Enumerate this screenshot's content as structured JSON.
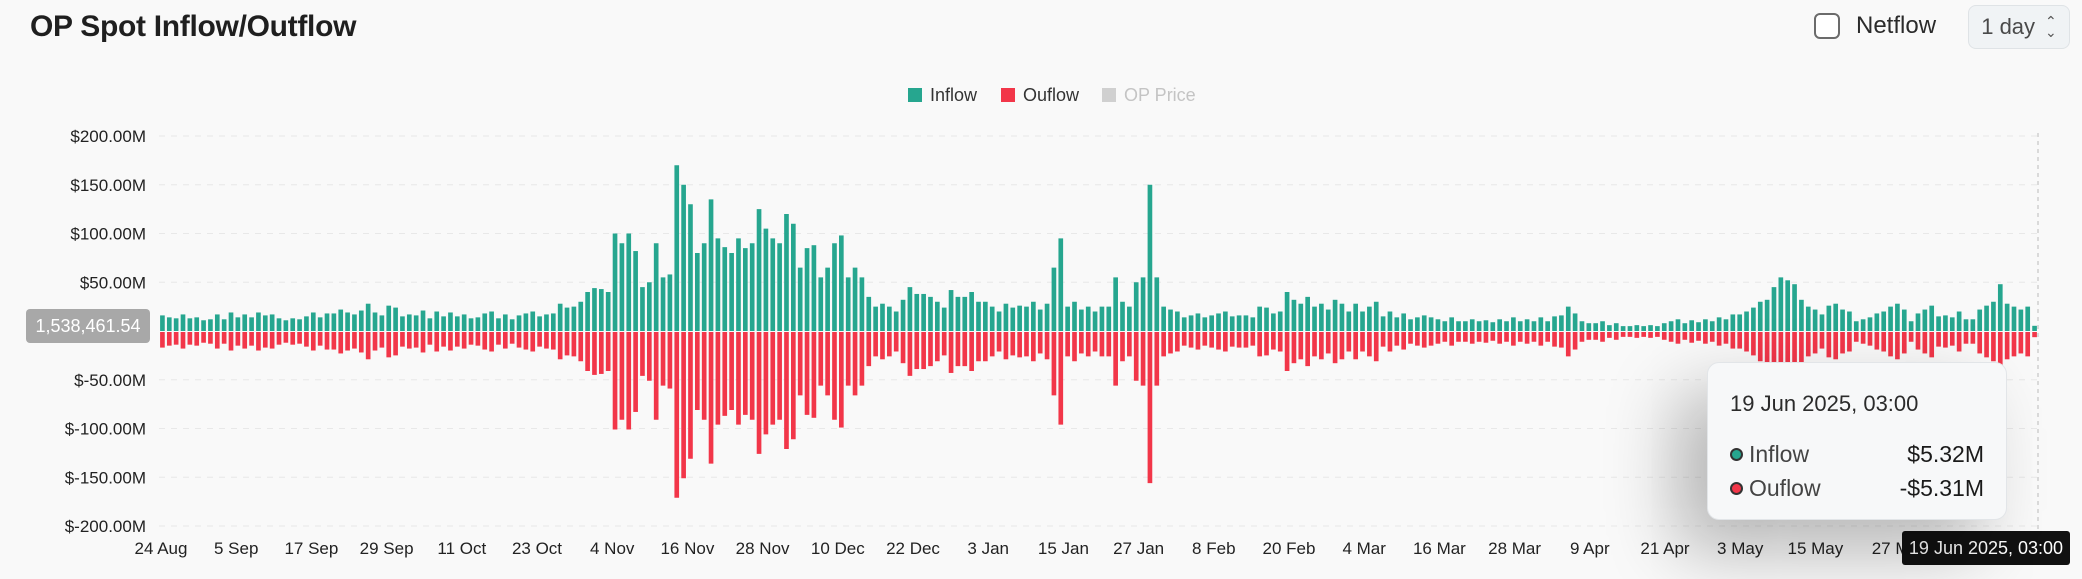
{
  "header": {
    "title": "OP Spot Inflow/Outflow",
    "netflow_label": "Netflow",
    "period_value": "1 day"
  },
  "colors": {
    "inflow": "#26a68f",
    "outflow": "#f23649",
    "price": "#d0d0d0"
  },
  "tooltip": {
    "date": "19 Jun 2025, 03:00",
    "inflow_label": "Inflow",
    "inflow_value": "$5.32M",
    "outflow_label": "Ouflow",
    "outflow_value": "-$5.31M"
  },
  "crosshair": {
    "y_value": "1,538,461.54",
    "x_value": "19 Jun 2025, 03:00"
  },
  "chart_data": {
    "type": "bar",
    "legend": [
      {
        "name": "Inflow",
        "color": "#26a68f",
        "active": true
      },
      {
        "name": "Ouflow",
        "color": "#f23649",
        "active": true
      },
      {
        "name": "OP Price",
        "color": "#d0d0d0",
        "active": false
      }
    ],
    "legend_position": "top-center",
    "yticks": [
      "$200.00M",
      "$150.00M",
      "$100.00M",
      "$50.00M",
      "$-50.00M",
      "$-100.00M",
      "$-150.00M",
      "$-200.00M"
    ],
    "ylim": [
      -200,
      200
    ],
    "yunit": "$M",
    "xticks": [
      "24 Aug",
      "5 Sep",
      "17 Sep",
      "29 Sep",
      "11 Oct",
      "23 Oct",
      "4 Nov",
      "16 Nov",
      "28 Nov",
      "10 Dec",
      "22 Dec",
      "3 Jan",
      "15 Jan",
      "27 Jan",
      "8 Feb",
      "20 Feb",
      "4 Mar",
      "16 Mar",
      "28 Mar",
      "9 Apr",
      "21 Apr",
      "3 May",
      "15 May",
      "27 M"
    ],
    "grid": true,
    "series": [
      {
        "name": "Inflow",
        "values": [
          16,
          14,
          13,
          17,
          13,
          14,
          11,
          12,
          17,
          12,
          19,
          14,
          17,
          14,
          19,
          16,
          17,
          13,
          11,
          13,
          12,
          15,
          19,
          14,
          18,
          18,
          22,
          19,
          17,
          21,
          28,
          19,
          16,
          26,
          24,
          15,
          17,
          16,
          21,
          13,
          20,
          15,
          19,
          15,
          17,
          13,
          14,
          18,
          20,
          13,
          17,
          12,
          16,
          18,
          20,
          15,
          17,
          18,
          28,
          24,
          25,
          30,
          40,
          44,
          43,
          40,
          100,
          90,
          100,
          82,
          45,
          50,
          90,
          55,
          58,
          170,
          150,
          130,
          80,
          90,
          135,
          95,
          86,
          80,
          95,
          85,
          90,
          125,
          105,
          95,
          90,
          120,
          110,
          65,
          85,
          88,
          55,
          65,
          90,
          98,
          55,
          65,
          55,
          35,
          25,
          28,
          25,
          20,
          32,
          45,
          38,
          38,
          35,
          30,
          24,
          42,
          35,
          35,
          40,
          30,
          30,
          25,
          20,
          28,
          24,
          26,
          25,
          30,
          22,
          28,
          65,
          95,
          25,
          30,
          22,
          25,
          20,
          25,
          25,
          55,
          30,
          25,
          50,
          55,
          150,
          55,
          25,
          22,
          20,
          14,
          16,
          18,
          14,
          16,
          18,
          20,
          15,
          16,
          16,
          14,
          25,
          24,
          18,
          20,
          40,
          32,
          28,
          35,
          25,
          28,
          22,
          32,
          28,
          20,
          28,
          20,
          25,
          30,
          15,
          20,
          14,
          18,
          12,
          14,
          16,
          14,
          12,
          10,
          14,
          10,
          10,
          12,
          10,
          11,
          9,
          12,
          10,
          14,
          10,
          12,
          10,
          14,
          10,
          15,
          16,
          25,
          18,
          10,
          8,
          8,
          10,
          6,
          8,
          5,
          5,
          6,
          5,
          6,
          5,
          8,
          10,
          12,
          8,
          11,
          9,
          12,
          10,
          14,
          12,
          17,
          17,
          20,
          24,
          30,
          32,
          45,
          55,
          52,
          48,
          32,
          25,
          22,
          17,
          26,
          28,
          22,
          20,
          10,
          12,
          14,
          18,
          20,
          25,
          28,
          22,
          10,
          18,
          22,
          26,
          15,
          16,
          14,
          20,
          12,
          12,
          22,
          26,
          30,
          48,
          28,
          25,
          22,
          25,
          5.32
        ]
      },
      {
        "name": "Ouflow",
        "values": [
          -16,
          -14,
          -13,
          -17,
          -13,
          -14,
          -11,
          -12,
          -17,
          -12,
          -19,
          -14,
          -17,
          -14,
          -19,
          -16,
          -17,
          -13,
          -11,
          -13,
          -12,
          -15,
          -19,
          -14,
          -18,
          -18,
          -22,
          -19,
          -17,
          -21,
          -28,
          -19,
          -16,
          -26,
          -24,
          -15,
          -17,
          -16,
          -21,
          -13,
          -20,
          -15,
          -19,
          -15,
          -17,
          -13,
          -14,
          -18,
          -20,
          -13,
          -17,
          -12,
          -16,
          -18,
          -20,
          -15,
          -17,
          -18,
          -28,
          -24,
          -25,
          -30,
          -40,
          -44,
          -43,
          -40,
          -100,
          -90,
          -100,
          -82,
          -45,
          -50,
          -90,
          -55,
          -58,
          -170,
          -150,
          -130,
          -80,
          -90,
          -135,
          -95,
          -86,
          -80,
          -95,
          -85,
          -90,
          -125,
          -105,
          -95,
          -90,
          -120,
          -110,
          -65,
          -85,
          -88,
          -55,
          -65,
          -90,
          -98,
          -55,
          -65,
          -55,
          -35,
          -25,
          -28,
          -25,
          -20,
          -32,
          -45,
          -38,
          -38,
          -35,
          -30,
          -24,
          -42,
          -35,
          -35,
          -40,
          -30,
          -30,
          -25,
          -20,
          -28,
          -24,
          -26,
          -25,
          -30,
          -22,
          -28,
          -65,
          -95,
          -25,
          -30,
          -22,
          -25,
          -20,
          -25,
          -25,
          -55,
          -30,
          -25,
          -50,
          -55,
          -155,
          -55,
          -25,
          -22,
          -20,
          -14,
          -16,
          -18,
          -14,
          -16,
          -18,
          -20,
          -15,
          -16,
          -16,
          -14,
          -25,
          -24,
          -18,
          -20,
          -40,
          -32,
          -28,
          -35,
          -25,
          -28,
          -22,
          -32,
          -28,
          -20,
          -28,
          -20,
          -25,
          -30,
          -15,
          -20,
          -14,
          -18,
          -12,
          -14,
          -16,
          -14,
          -12,
          -10,
          -14,
          -10,
          -10,
          -12,
          -10,
          -11,
          -9,
          -12,
          -10,
          -14,
          -10,
          -12,
          -10,
          -14,
          -10,
          -15,
          -16,
          -25,
          -18,
          -10,
          -8,
          -8,
          -10,
          -6,
          -8,
          -5,
          -5,
          -6,
          -5,
          -6,
          -5,
          -8,
          -10,
          -12,
          -8,
          -11,
          -9,
          -12,
          -10,
          -14,
          -12,
          -17,
          -17,
          -20,
          -24,
          -30,
          -32,
          -45,
          -55,
          -52,
          -48,
          -32,
          -25,
          -22,
          -17,
          -26,
          -28,
          -22,
          -20,
          -10,
          -12,
          -14,
          -18,
          -20,
          -25,
          -28,
          -22,
          -10,
          -18,
          -22,
          -26,
          -15,
          -16,
          -14,
          -20,
          -12,
          -12,
          -22,
          -26,
          -30,
          -48,
          -28,
          -25,
          -22,
          -25,
          -5.31
        ]
      }
    ]
  }
}
